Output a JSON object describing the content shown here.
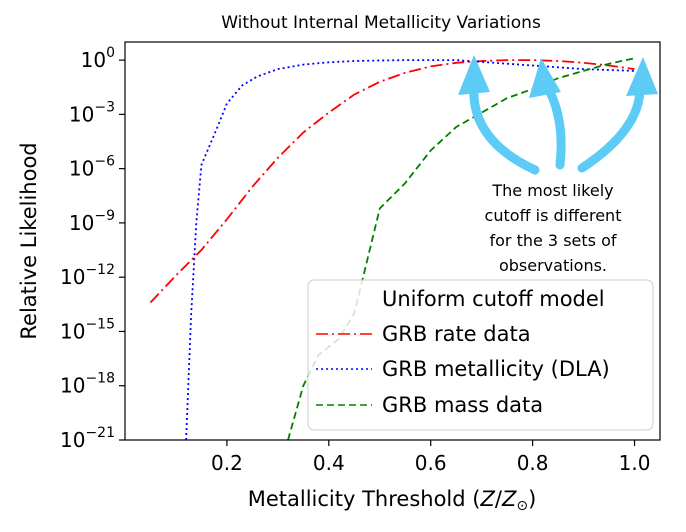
{
  "chart_data": {
    "type": "line",
    "title": "Without Internal Metallicity Variations",
    "xlabel": "Metallicity Threshold (Z/Z⊙)",
    "ylabel": "Relative Likelihood",
    "xlim": [
      0.0,
      1.05
    ],
    "ylim_log10": [
      -21,
      1
    ],
    "yscale": "log",
    "xticks": [
      "0.2",
      "0.4",
      "0.6",
      "0.8",
      "1.0"
    ],
    "xtick_values": [
      0.2,
      0.4,
      0.6,
      0.8,
      1.0
    ],
    "yticks_exponents": [
      0,
      -3,
      -6,
      -9,
      -12,
      -15,
      -18,
      -21
    ],
    "grid": false,
    "legend": {
      "title": "Uniform cutoff model",
      "placement": "lower-right"
    },
    "series": [
      {
        "name": "GRB rate data",
        "color": "#ff0000",
        "style": "dashdot",
        "x": [
          0.05,
          0.1,
          0.15,
          0.2,
          0.25,
          0.3,
          0.35,
          0.4,
          0.45,
          0.5,
          0.55,
          0.6,
          0.65,
          0.7,
          0.75,
          0.8,
          0.85,
          0.9,
          0.95,
          1.0
        ],
        "log10_y": [
          -13.4,
          -11.9,
          -10.5,
          -8.8,
          -7.0,
          -5.4,
          -4.0,
          -2.9,
          -1.9,
          -1.2,
          -0.7,
          -0.35,
          -0.15,
          -0.05,
          0.0,
          0.0,
          -0.05,
          -0.15,
          -0.3,
          -0.5
        ]
      },
      {
        "name": "GRB metallicity (DLA)",
        "color": "#0000ff",
        "style": "dotted",
        "x": [
          0.12,
          0.13,
          0.14,
          0.15,
          0.18,
          0.2,
          0.23,
          0.26,
          0.3,
          0.35,
          0.4,
          0.45,
          0.5,
          0.55,
          0.6,
          0.65,
          0.7,
          0.75,
          0.8,
          0.85,
          0.9,
          0.95,
          1.0
        ],
        "log10_y": [
          -21,
          -14.0,
          -9.0,
          -5.8,
          -3.8,
          -2.4,
          -1.4,
          -0.9,
          -0.5,
          -0.25,
          -0.12,
          -0.05,
          -0.02,
          0.0,
          0.0,
          0.0,
          -0.1,
          -0.2,
          -0.3,
          -0.4,
          -0.5,
          -0.55,
          -0.6
        ]
      },
      {
        "name": "GRB mass data",
        "color": "#008000",
        "style": "dashed",
        "x": [
          0.32,
          0.35,
          0.38,
          0.42,
          0.45,
          0.5,
          0.55,
          0.6,
          0.65,
          0.7,
          0.75,
          0.8,
          0.85,
          0.9,
          0.95,
          1.0
        ],
        "log10_y": [
          -21,
          -18.0,
          -16.3,
          -15.4,
          -14.0,
          -8.2,
          -6.8,
          -5.0,
          -3.7,
          -2.9,
          -2.1,
          -1.6,
          -1.0,
          -0.6,
          -0.2,
          0.1
        ]
      }
    ],
    "annotation": "The most likely cutoff is different for the 3 sets of observations."
  }
}
